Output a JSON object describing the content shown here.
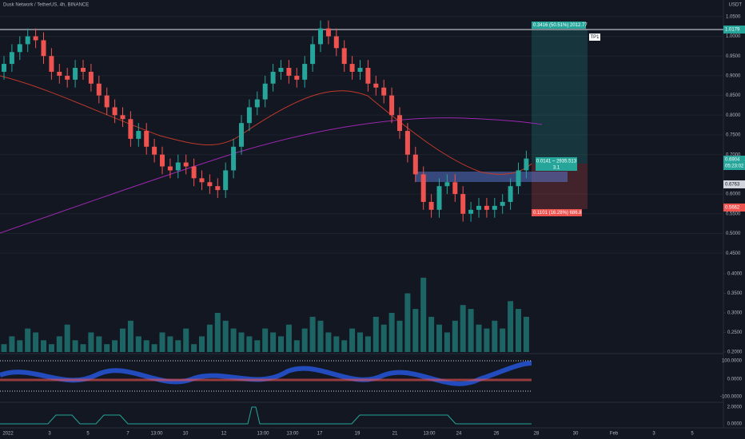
{
  "chart_data": {
    "type": "candlestick",
    "title": "Dusk Network / TetherUS, 4h, BINANCE",
    "currency": "USDT",
    "up_color": "#26a69a",
    "down_color": "#ef5350",
    "open": [
      0.91,
      0.93,
      0.96,
      0.98,
      1.0,
      0.99,
      0.95,
      0.91,
      0.9,
      0.89,
      0.92,
      0.91,
      0.88,
      0.85,
      0.82,
      0.8,
      0.79,
      0.74,
      0.76,
      0.72,
      0.7,
      0.67,
      0.66,
      0.68,
      0.67,
      0.64,
      0.63,
      0.62,
      0.61,
      0.66,
      0.72,
      0.78,
      0.82,
      0.84,
      0.88,
      0.91,
      0.92,
      0.9,
      0.89,
      0.93,
      0.98,
      1.02,
      1.0,
      0.97,
      0.93,
      0.91,
      0.92,
      0.88,
      0.87,
      0.85,
      0.8,
      0.76,
      0.7,
      0.65,
      0.58,
      0.56,
      0.62,
      0.63,
      0.6,
      0.55,
      0.56,
      0.57,
      0.56,
      0.57,
      0.58,
      0.62,
      0.66
    ],
    "high": [
      0.95,
      0.98,
      1.0,
      1.02,
      1.02,
      1.01,
      0.97,
      0.93,
      0.92,
      0.94,
      0.94,
      0.93,
      0.9,
      0.87,
      0.84,
      0.82,
      0.81,
      0.78,
      0.78,
      0.74,
      0.72,
      0.69,
      0.7,
      0.7,
      0.69,
      0.66,
      0.65,
      0.64,
      0.68,
      0.74,
      0.8,
      0.84,
      0.86,
      0.9,
      0.93,
      0.94,
      0.94,
      0.92,
      0.95,
      1.0,
      1.04,
      1.04,
      1.02,
      0.99,
      0.95,
      0.94,
      0.94,
      0.9,
      0.89,
      0.87,
      0.82,
      0.78,
      0.72,
      0.67,
      0.6,
      0.64,
      0.65,
      0.65,
      0.62,
      0.58,
      0.59,
      0.59,
      0.59,
      0.6,
      0.64,
      0.68,
      0.71
    ],
    "low": [
      0.89,
      0.91,
      0.94,
      0.96,
      0.97,
      0.93,
      0.89,
      0.88,
      0.87,
      0.87,
      0.89,
      0.86,
      0.83,
      0.8,
      0.78,
      0.77,
      0.72,
      0.72,
      0.7,
      0.68,
      0.65,
      0.64,
      0.64,
      0.65,
      0.62,
      0.61,
      0.6,
      0.59,
      0.59,
      0.64,
      0.7,
      0.76,
      0.8,
      0.82,
      0.86,
      0.89,
      0.88,
      0.87,
      0.87,
      0.91,
      0.96,
      0.98,
      0.95,
      0.91,
      0.89,
      0.89,
      0.86,
      0.85,
      0.83,
      0.78,
      0.74,
      0.68,
      0.63,
      0.56,
      0.54,
      0.54,
      0.6,
      0.58,
      0.53,
      0.53,
      0.54,
      0.54,
      0.54,
      0.55,
      0.56,
      0.6,
      0.64
    ],
    "close": [
      0.93,
      0.96,
      0.98,
      1.0,
      0.99,
      0.95,
      0.91,
      0.9,
      0.89,
      0.92,
      0.91,
      0.88,
      0.85,
      0.82,
      0.8,
      0.79,
      0.74,
      0.76,
      0.72,
      0.7,
      0.67,
      0.66,
      0.68,
      0.67,
      0.64,
      0.63,
      0.62,
      0.61,
      0.66,
      0.72,
      0.78,
      0.82,
      0.84,
      0.88,
      0.91,
      0.92,
      0.9,
      0.89,
      0.93,
      0.98,
      1.02,
      1.0,
      0.97,
      0.93,
      0.91,
      0.92,
      0.88,
      0.87,
      0.85,
      0.8,
      0.76,
      0.7,
      0.65,
      0.58,
      0.56,
      0.62,
      0.63,
      0.6,
      0.55,
      0.56,
      0.57,
      0.56,
      0.57,
      0.58,
      0.62,
      0.66,
      0.69
    ],
    "volume": [
      0.22,
      0.24,
      0.23,
      0.26,
      0.25,
      0.23,
      0.22,
      0.24,
      0.27,
      0.23,
      0.22,
      0.25,
      0.24,
      0.22,
      0.23,
      0.26,
      0.28,
      0.24,
      0.23,
      0.22,
      0.25,
      0.24,
      0.23,
      0.26,
      0.22,
      0.24,
      0.27,
      0.3,
      0.28,
      0.26,
      0.25,
      0.24,
      0.23,
      0.26,
      0.25,
      0.24,
      0.27,
      0.23,
      0.26,
      0.29,
      0.28,
      0.25,
      0.24,
      0.23,
      0.26,
      0.25,
      0.24,
      0.29,
      0.27,
      0.3,
      0.28,
      0.35,
      0.31,
      0.39,
      0.29,
      0.27,
      0.25,
      0.28,
      0.32,
      0.31,
      0.27,
      0.26,
      0.28,
      0.26,
      0.33,
      0.31,
      0.29
    ],
    "ylim": [
      0.4362,
      1.0921
    ],
    "yticks": [
      {
        "value": 1.05,
        "label": "1.0500"
      },
      {
        "value": 1.0,
        "label": "1.0000"
      },
      {
        "value": 0.95,
        "label": "0.9500"
      },
      {
        "value": 0.9,
        "label": "0.9000"
      },
      {
        "value": 0.85,
        "label": "0.8500"
      },
      {
        "value": 0.8,
        "label": "0.8000"
      },
      {
        "value": 0.75,
        "label": "0.7500"
      },
      {
        "value": 0.7,
        "label": "0.7000"
      },
      {
        "value": 0.6,
        "label": "0.6000"
      },
      {
        "value": 0.55,
        "label": "0.5500"
      },
      {
        "value": 0.5,
        "label": "0.5000"
      },
      {
        "value": 0.45,
        "label": "0.4500"
      }
    ],
    "vlim": [
      0.2,
      0.4
    ],
    "vticks": [
      {
        "value": 0.4,
        "label": "0.4000"
      },
      {
        "value": 0.35,
        "label": "0.3500"
      },
      {
        "value": 0.3,
        "label": "0.3000"
      },
      {
        "value": 0.25,
        "label": "0.2500"
      },
      {
        "value": 0.2,
        "label": "0.2000"
      }
    ],
    "osc_ticks": [
      "100.0000",
      "0.0000",
      "-100.0000"
    ],
    "sub_ticks": [
      "2.0000",
      "0.0000"
    ],
    "xticks": [
      "2022",
      "3",
      "5",
      "7",
      "13:00",
      "10",
      "12",
      "13:00",
      "13:00",
      "17",
      "19",
      "21",
      "13:00",
      "24",
      "26",
      "28",
      "30",
      "Feb",
      "3",
      "5"
    ],
    "price_labels": {
      "target": "1.0179",
      "last": "0.6904",
      "last_time": "05:23:02",
      "entry": "0.6763",
      "stop": "0.5662"
    },
    "position": {
      "profit": "0.3416 (50.51%) 2012.77",
      "entry": "0.0141 ~ 2935.513",
      "ratio": "3.1",
      "loss": "0.1101 (16.28%) 686.8",
      "tp": "TP1"
    }
  }
}
